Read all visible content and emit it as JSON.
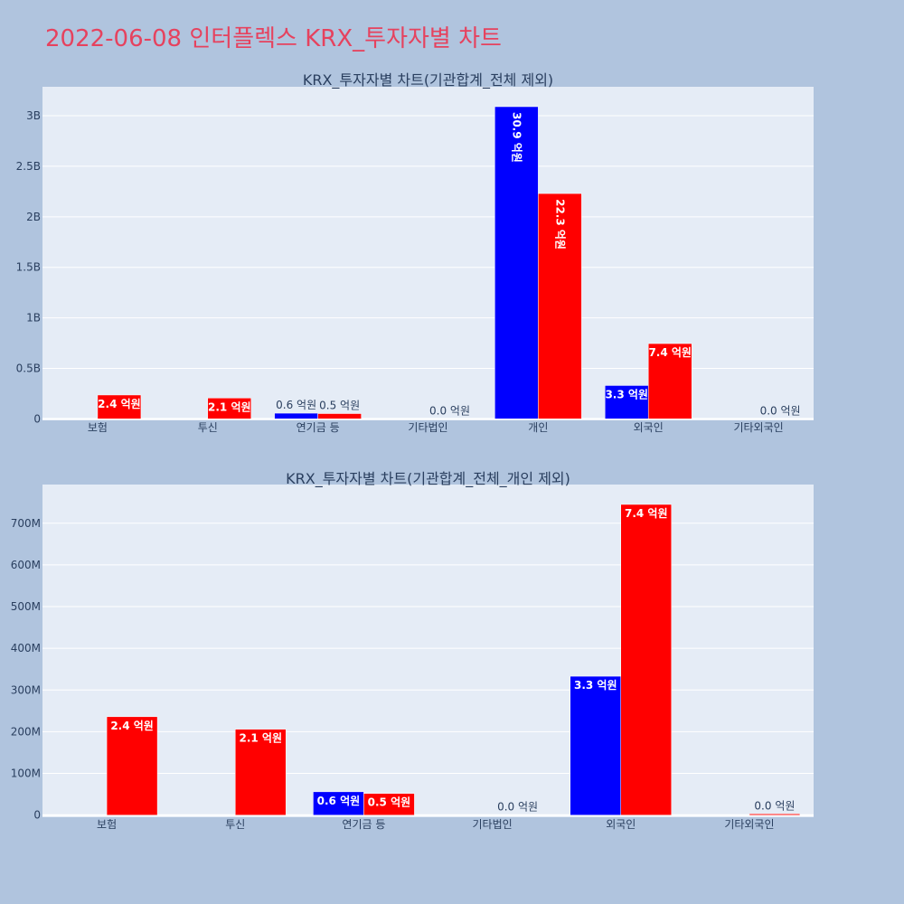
{
  "page": {
    "title": "2022-06-08 인터플렉스 KRX_투자자별 차트"
  },
  "colors": {
    "background": "#b0c4de",
    "plot_background": "#e5ecf6",
    "title": "#e6425e",
    "text": "#2a3f5f",
    "series_blue": "#0000ff",
    "series_red": "#ff0000"
  },
  "chart_data": [
    {
      "type": "bar",
      "title": "KRX_투자자별 차트(기관합계_전체 제외)",
      "categories": [
        "보험",
        "투신",
        "연기금 등",
        "기타법인",
        "개인",
        "외국인",
        "기타외국인"
      ],
      "series": [
        {
          "color": "#0000ff",
          "values": [
            0,
            0,
            56000000,
            0,
            3090000000,
            330000000,
            0
          ],
          "labels": [
            "",
            "",
            "0.6 억원",
            "",
            "30.9 억원",
            "3.3 억원",
            ""
          ]
        },
        {
          "color": "#ff0000",
          "values": [
            236000000,
            206000000,
            52000000,
            0,
            2230000000,
            745000000,
            0
          ],
          "labels": [
            "2.4 억원",
            "2.1 억원",
            "0.5 억원",
            "0.0 억원",
            "22.3 억원",
            "7.4 억원",
            "0.0 억원"
          ]
        }
      ],
      "yticks": [
        0,
        500000000,
        1000000000,
        1500000000,
        2000000000,
        2500000000,
        3000000000
      ],
      "ytick_labels": [
        "0",
        "0.5B",
        "1B",
        "1.5B",
        "2B",
        "2.5B",
        "3B"
      ],
      "ylim": [
        -15000000,
        3000000000
      ],
      "grid": true,
      "legend": "none"
    },
    {
      "type": "bar",
      "title": "KRX_투자자별 차트(기관합계_전체_개인 제외)",
      "categories": [
        "보험",
        "투신",
        "연기금 등",
        "기타법인",
        "외국인",
        "기타외국인"
      ],
      "series": [
        {
          "color": "#0000ff",
          "values": [
            0,
            0,
            56000000,
            0,
            333000000,
            0
          ],
          "labels": [
            "",
            "",
            "0.6 억원",
            "",
            "3.3 억원",
            ""
          ]
        },
        {
          "color": "#ff0000",
          "values": [
            236000000,
            206000000,
            52000000,
            0,
            745000000,
            3000000
          ],
          "labels": [
            "2.4 억원",
            "2.1 억원",
            "0.5 억원",
            "0.0 억원",
            "7.4 억원",
            "0.0 억원"
          ]
        }
      ],
      "yticks": [
        0,
        100000000,
        200000000,
        300000000,
        400000000,
        500000000,
        600000000,
        700000000
      ],
      "ytick_labels": [
        "0",
        "100M",
        "200M",
        "300M",
        "400M",
        "500M",
        "600M",
        "700M"
      ],
      "ylim": [
        -5000000,
        700000000
      ],
      "grid": true,
      "legend": "none"
    }
  ]
}
